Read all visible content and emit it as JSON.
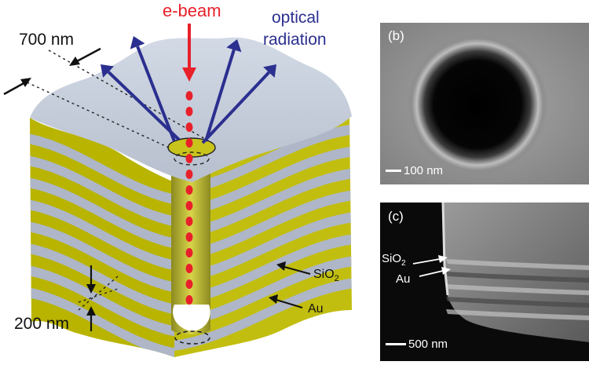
{
  "diagram": {
    "ebeam_label": "e-beam",
    "optical_label_line1": "optical",
    "optical_label_line2": "radiation",
    "dim_top_label": "700 nm",
    "dim_bottom_label": "200 nm",
    "sio2_label_prefix": "SiO",
    "sio2_label_sub": "2",
    "au_label": "Au",
    "colors": {
      "ebeam": "#e8202a",
      "radiation": "#2b2f8f",
      "sio2": "#aeb6c8",
      "au": "#b8b400",
      "top": "#c6cedd"
    }
  },
  "panel_b": {
    "label": "(b)",
    "scale_label": "100 nm"
  },
  "panel_c": {
    "label": "(c)",
    "sio2_prefix": "SiO",
    "sio2_sub": "2",
    "au_label": "Au",
    "scale_label": "500 nm"
  }
}
